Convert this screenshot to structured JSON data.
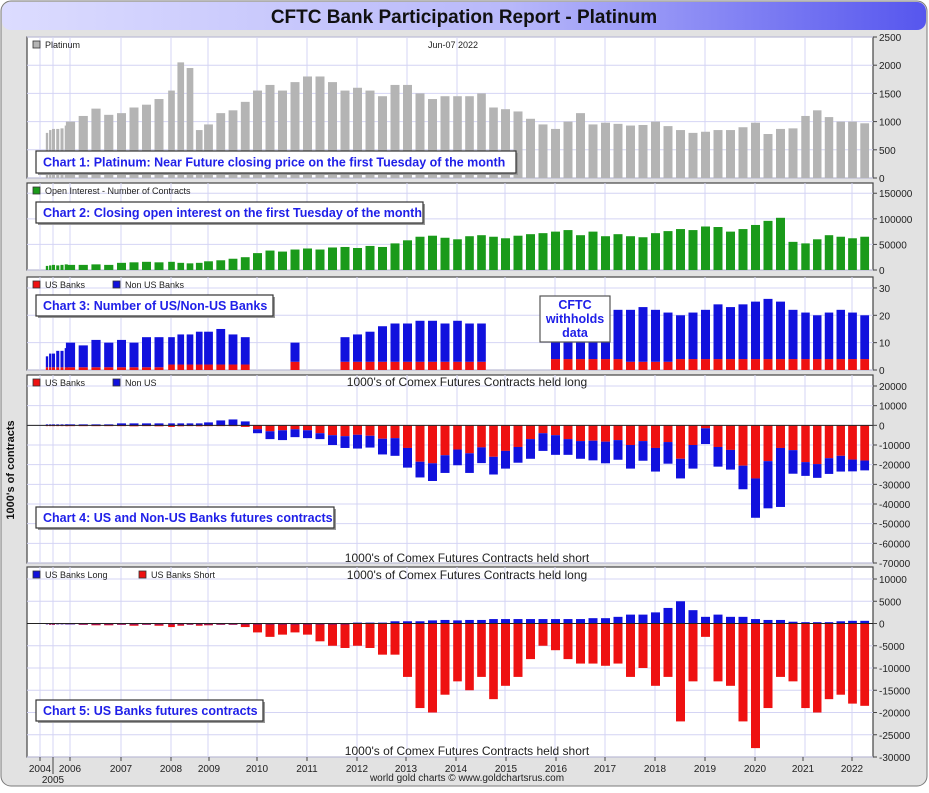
{
  "title": "CFTC Bank Participation Report - Platinum",
  "date_label": "Jun-07  2022",
  "footer": "world gold charts © www.goldchartsrus.com",
  "y_axis_title": "1000's of contracts",
  "held_long": "1000's of Comex Futures Contracts held long",
  "held_short": "1000's of Comex Futures Contracts held short",
  "withheld_note": [
    "CFTC",
    "withholds",
    "data"
  ],
  "colors": {
    "price": "#b4b4b4",
    "open_interest": "#1a9a1a",
    "us": "#ee1111",
    "non_us": "#1111dd",
    "label_text": "#2020e8",
    "title_bar_start": "#d8d8ff",
    "title_bar_end": "#5a5af0"
  },
  "x_tick_labels": [
    "2004",
    "2005",
    "2006",
    "2007",
    "2008",
    "2009",
    "2010",
    "2011",
    "2012",
    "2013",
    "2014",
    "2015",
    "2016",
    "2017",
    "2018",
    "2019",
    "2020",
    "2021",
    "2022"
  ],
  "chart_data": [
    {
      "type": "bar",
      "title": "Chart 1: Platinum: Near Future closing price on the first Tuesday of the month",
      "legend": [
        "Platinum"
      ],
      "ylim": [
        0,
        2500
      ],
      "yticks": [
        0,
        500,
        1000,
        1500,
        2000,
        2500
      ],
      "grid": true,
      "series": [
        {
          "name": "Platinum",
          "values": [
            800,
            850,
            870,
            870,
            880,
            930,
            1000,
            1100,
            1230,
            1120,
            1150,
            1250,
            1300,
            1400,
            1550,
            2050,
            1950,
            850,
            950,
            1150,
            1200,
            1350,
            1550,
            1650,
            1550,
            1700,
            1800,
            1800,
            1700,
            1550,
            1600,
            1550,
            1450,
            1650,
            1650,
            1500,
            1400,
            1450,
            1450,
            1450,
            1500,
            1250,
            1220,
            1180,
            1050,
            950,
            870,
            1000,
            1150,
            950,
            980,
            960,
            930,
            940,
            1000,
            920,
            850,
            800,
            820,
            850,
            850,
            900,
            980,
            780,
            870,
            880,
            1100,
            1200,
            1080,
            1000,
            1000,
            970
          ]
        }
      ]
    },
    {
      "type": "bar",
      "title": "Chart 2: Closing open interest on the first Tuesday of the month",
      "legend": [
        "Open Interest - Number of Contracts"
      ],
      "ylim": [
        0,
        150000
      ],
      "yticks": [
        0,
        50000,
        100000,
        150000
      ],
      "grid": true,
      "series": [
        {
          "name": "Open Interest - Number of Contracts",
          "values": [
            8000,
            9000,
            10000,
            9000,
            10000,
            11000,
            10000,
            10000,
            11000,
            10000,
            14000,
            15000,
            16000,
            15000,
            16000,
            14000,
            13000,
            14000,
            17000,
            19000,
            22000,
            25000,
            33000,
            38000,
            36000,
            40000,
            42000,
            40000,
            44000,
            45000,
            43000,
            47000,
            45000,
            52000,
            58000,
            65000,
            67000,
            63000,
            60000,
            66000,
            68000,
            65000,
            62000,
            67000,
            70000,
            72000,
            75000,
            78000,
            68000,
            75000,
            66000,
            70000,
            66000,
            64000,
            72000,
            76000,
            80000,
            78000,
            85000,
            84000,
            75000,
            80000,
            88000,
            96000,
            102000,
            55000,
            52000,
            60000,
            68000,
            65000,
            62000,
            65000
          ]
        }
      ]
    },
    {
      "type": "bar",
      "title": "Chart 3: Number of US/Non-US Banks",
      "legend": [
        "US Banks",
        "Non US Banks"
      ],
      "ylim": [
        0,
        30
      ],
      "yticks": [
        0,
        10,
        20,
        30
      ],
      "grid": true,
      "stacked": true,
      "series": [
        {
          "name": "US Banks",
          "values": [
            1,
            1,
            1,
            1,
            1,
            1,
            1,
            1,
            1,
            1,
            1,
            1,
            1,
            1,
            2,
            2,
            2,
            2,
            2,
            2,
            2,
            2,
            null,
            null,
            null,
            3,
            null,
            null,
            null,
            3,
            3,
            3,
            3,
            3,
            3,
            3,
            3,
            3,
            3,
            3,
            3,
            null,
            null,
            null,
            null,
            null,
            4,
            4,
            4,
            4,
            4,
            4,
            3,
            3,
            3,
            3,
            4,
            4,
            4,
            4,
            4,
            4,
            4,
            4,
            4,
            4,
            4,
            4,
            4,
            4,
            4,
            4
          ]
        },
        {
          "name": "Non US Banks",
          "values": [
            4,
            5,
            5,
            6,
            6,
            7,
            9,
            8,
            10,
            9,
            10,
            9,
            11,
            11,
            10,
            11,
            11,
            12,
            12,
            13,
            11,
            10,
            null,
            null,
            null,
            7,
            null,
            null,
            null,
            9,
            10,
            11,
            13,
            14,
            14,
            15,
            15,
            14,
            15,
            14,
            14,
            null,
            null,
            null,
            null,
            null,
            15,
            16,
            17,
            18,
            18,
            18,
            19,
            20,
            19,
            18,
            16,
            17,
            18,
            20,
            19,
            20,
            21,
            22,
            21,
            18,
            17,
            16,
            17,
            18,
            17,
            16
          ]
        }
      ]
    },
    {
      "type": "bar",
      "title": "Chart 4: US and Non-US Banks futures contracts",
      "legend": [
        "US Banks",
        "Non US"
      ],
      "ylim": [
        -70000,
        20000
      ],
      "yticks": [
        20000,
        10000,
        0,
        -10000,
        -20000,
        -30000,
        -40000,
        -50000,
        -60000,
        -70000
      ],
      "grid": true,
      "series": [
        {
          "name": "US Banks",
          "values": [
            0,
            -300,
            -300,
            0,
            0,
            0,
            -200,
            -300,
            -400,
            -400,
            -300,
            -500,
            -300,
            -500,
            -800,
            -500,
            -300,
            -500,
            -400,
            -300,
            -300,
            -800,
            -2000,
            -3000,
            -2500,
            -2000,
            -2500,
            -4000,
            -5000,
            -5500,
            -4800,
            -5300,
            -6800,
            -6500,
            -11500,
            -18500,
            -19300,
            -15200,
            -12300,
            -14200,
            -11200,
            -16000,
            -13000,
            -11000,
            -7000,
            -4000,
            -5000,
            -7000,
            -8000,
            -7800,
            -8300,
            -7500,
            -10000,
            -8000,
            -11500,
            -8500,
            -17000,
            -10000,
            -1500,
            -11000,
            -12500,
            -20500,
            -27000,
            -18200,
            -11500,
            -12600,
            -18700,
            -19700,
            -16700,
            -15500,
            -17400,
            -17900
          ]
        },
        {
          "name": "Non US",
          "values": [
            500,
            500,
            500,
            500,
            500,
            500,
            500,
            500,
            500,
            500,
            1000,
            1000,
            1000,
            1000,
            1000,
            1000,
            1000,
            1000,
            1500,
            2500,
            3000,
            2000,
            -2000,
            -4000,
            -5000,
            -4000,
            -4000,
            -3000,
            -5000,
            -6000,
            -7000,
            -6000,
            -8000,
            -9000,
            -10000,
            -8000,
            -9000,
            -9000,
            -8000,
            -10000,
            -8000,
            -9000,
            -9000,
            -8000,
            -10000,
            -9000,
            -10000,
            -8000,
            -9000,
            -10000,
            -11000,
            -10000,
            -12000,
            -10000,
            -12000,
            -11000,
            -10000,
            -12000,
            -8000,
            -10000,
            -10000,
            -12000,
            -20000,
            -24000,
            -30000,
            -12000,
            -7000,
            -7000,
            -8000,
            -8000,
            -6000,
            -5000
          ]
        }
      ]
    },
    {
      "type": "bar",
      "title": "Chart 5: US Banks futures contracts",
      "legend": [
        "US Banks Long",
        "US Banks Short"
      ],
      "ylim": [
        -30000,
        10000
      ],
      "yticks": [
        10000,
        5000,
        0,
        -5000,
        -10000,
        -15000,
        -20000,
        -25000,
        -30000
      ],
      "grid": true,
      "series": [
        {
          "name": "US Banks Long",
          "values": [
            0,
            0,
            0,
            0,
            0,
            0,
            0,
            0,
            0,
            0,
            0,
            0,
            0,
            0,
            0,
            0,
            0,
            0,
            0,
            0,
            0,
            0,
            0,
            0,
            0,
            0,
            0,
            0,
            0,
            0,
            200,
            200,
            200,
            500,
            500,
            500,
            700,
            800,
            700,
            800,
            800,
            1000,
            1000,
            1000,
            1000,
            1000,
            1000,
            1000,
            1000,
            1200,
            1200,
            1500,
            2000,
            2000,
            2500,
            3500,
            5000,
            3000,
            1500,
            2000,
            1500,
            1500,
            1000,
            800,
            800,
            400,
            300,
            300,
            300,
            500,
            600,
            600
          ]
        },
        {
          "name": "US Banks Short",
          "values": [
            0,
            -300,
            -300,
            0,
            0,
            0,
            -200,
            -300,
            -400,
            -400,
            -300,
            -500,
            -300,
            -500,
            -800,
            -500,
            -300,
            -500,
            -400,
            -300,
            -300,
            -800,
            -2000,
            -3000,
            -2500,
            -2000,
            -2500,
            -4000,
            -5000,
            -5500,
            -5000,
            -5500,
            -7000,
            -7000,
            -12000,
            -19000,
            -20000,
            -16000,
            -13000,
            -15000,
            -12000,
            -17000,
            -14000,
            -12000,
            -8000,
            -5000,
            -6000,
            -8000,
            -9000,
            -9000,
            -9500,
            -9000,
            -12000,
            -10000,
            -14000,
            -12000,
            -22000,
            -13000,
            -3000,
            -13000,
            -14000,
            -22000,
            -28000,
            -19000,
            -12000,
            -13000,
            -19000,
            -20000,
            -17000,
            -16000,
            -18000,
            -18500
          ]
        }
      ]
    }
  ],
  "dates": [
    "2004-07",
    "2004-10",
    "2005-01",
    "2005-04",
    "2005-07",
    "2005-10",
    "2006-01",
    "2006-04",
    "2006-07",
    "2006-10",
    "2007-01",
    "2007-04",
    "2007-07",
    "2007-10",
    "2008-01",
    "2008-04",
    "2008-07",
    "2008-10",
    "2009-01",
    "2009-04",
    "2009-07",
    "2009-10",
    "2010-01",
    "2010-04",
    "2010-07",
    "2010-10",
    "2011-01",
    "2011-04",
    "2011-07",
    "2011-10",
    "2012-01",
    "2012-04",
    "2012-07",
    "2012-10",
    "2013-01",
    "2013-04",
    "2013-07",
    "2013-10",
    "2014-01",
    "2014-04",
    "2014-07",
    "2014-10",
    "2015-01",
    "2015-04",
    "2015-07",
    "2015-10",
    "2016-01",
    "2016-04",
    "2016-07",
    "2016-10",
    "2017-01",
    "2017-04",
    "2017-07",
    "2017-10",
    "2018-01",
    "2018-04",
    "2018-07",
    "2018-10",
    "2019-01",
    "2019-04",
    "2019-07",
    "2019-10",
    "2020-01",
    "2020-04",
    "2020-07",
    "2020-10",
    "2021-01",
    "2021-04",
    "2021-07",
    "2021-10",
    "2022-01",
    "2022-04"
  ]
}
